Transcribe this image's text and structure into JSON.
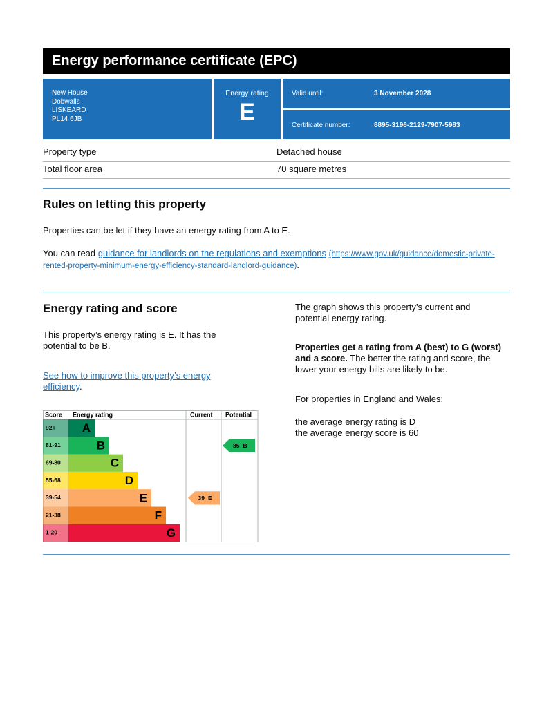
{
  "header": {
    "title": "Energy performance certificate (EPC)"
  },
  "address": [
    "New House",
    "Dobwalls",
    "LISKEARD",
    "PL14 6JB"
  ],
  "rating_box": {
    "label": "Energy rating",
    "value": "E"
  },
  "valid_until": {
    "label": "Valid until:",
    "value": "3 November 2028"
  },
  "certificate_number": {
    "label": "Certificate number:",
    "value": "8895-3196-2129-7907-5983"
  },
  "property": [
    [
      "Property type",
      "Detached house"
    ],
    [
      "Total floor area",
      "70 square metres"
    ]
  ],
  "rules": {
    "title": "Rules on letting this property",
    "paragraph": "Properties can be let if they have an energy rating from A to E.",
    "read_prefix": "You can read ",
    "link_text": "guidance for landlords on the regulations and exemptions",
    "link_url": "(https://www.gov.uk/guidance/domestic-private-rented-property-minimum-energy-efficiency-standard-landlord-guidance)",
    "read_suffix": "."
  },
  "score": {
    "title": "Energy rating and score",
    "paragraph": "This property’s energy rating is E. It has the potential to be B.",
    "link": "See how to improve this property’s energy efficiency",
    "link_suffix": "."
  },
  "graph": {
    "headers": [
      "Score",
      "Energy rating",
      "Current",
      "Potential"
    ],
    "bands": [
      {
        "range": "92+",
        "letter": "A",
        "color": "#008054"
      },
      {
        "range": "81-91",
        "letter": "B",
        "color": "#19b459"
      },
      {
        "range": "69-80",
        "letter": "C",
        "color": "#8dce46"
      },
      {
        "range": "55-68",
        "letter": "D",
        "color": "#ffd500"
      },
      {
        "range": "39-54",
        "letter": "E",
        "color": "#fcaa65"
      },
      {
        "range": "21-38",
        "letter": "F",
        "color": "#ef8023"
      },
      {
        "range": "1-20",
        "letter": "G",
        "color": "#e9153b"
      }
    ],
    "current": {
      "score": 39,
      "letter": "E"
    },
    "potential": {
      "score": 85,
      "letter": "B"
    }
  },
  "explanation": {
    "p1": "The graph shows this property’s current and potential energy rating.",
    "p2_bold": "Properties get a rating from A (best) to G (worst) and a score.",
    "p2_rest": " The better the rating and score, the lower your energy bills are likely to be.",
    "p3": "For properties in England and Wales:",
    "p4": "the average energy rating is D",
    "p5": "the average energy score is 60"
  }
}
